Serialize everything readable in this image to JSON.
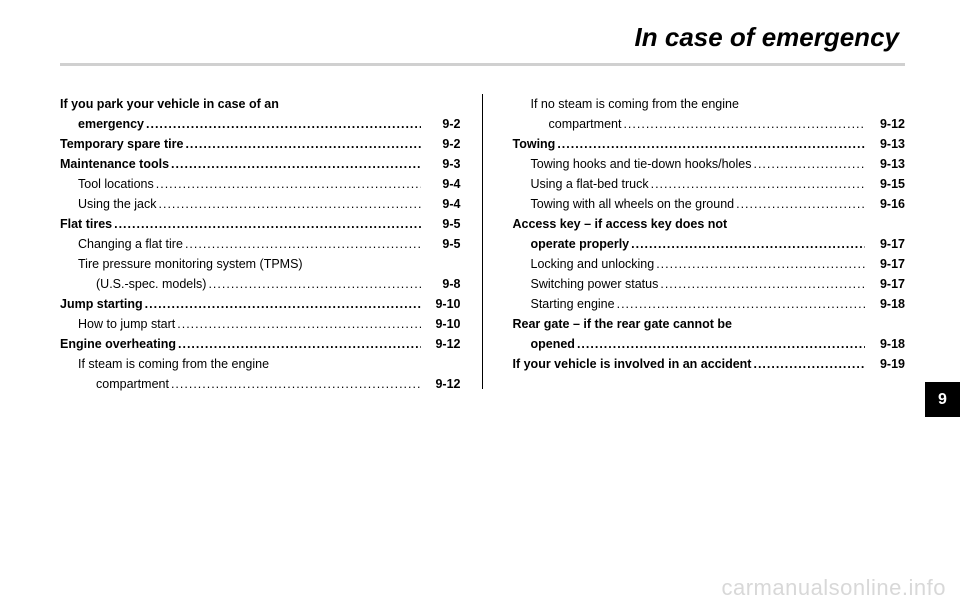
{
  "title": "In case of emergency",
  "side_tab": "9",
  "watermark": "carmanualsonline.info",
  "left": [
    {
      "label": "If you park your vehicle in case of an",
      "cls": "bold",
      "nodots": true
    },
    {
      "label": "emergency",
      "page": "9-2",
      "cls": "bold",
      "indent": "sub-continue"
    },
    {
      "label": "Temporary spare tire",
      "page": "9-2",
      "cls": "bold"
    },
    {
      "label": "Maintenance tools",
      "page": "9-3",
      "cls": "bold"
    },
    {
      "label": "Tool locations",
      "page": "9-4",
      "cls": "sub"
    },
    {
      "label": "Using the jack",
      "page": "9-4",
      "cls": "sub"
    },
    {
      "label": "Flat tires",
      "page": "9-5",
      "cls": "bold"
    },
    {
      "label": "Changing a flat tire",
      "page": "9-5",
      "cls": "sub"
    },
    {
      "label": "Tire pressure monitoring system (TPMS)",
      "cls": "sub",
      "nodots": true
    },
    {
      "label": "(U.S.-spec. models)",
      "page": "9-8",
      "cls": "subsub"
    },
    {
      "label": "Jump starting",
      "page": "9-10",
      "cls": "bold"
    },
    {
      "label": "How to jump start",
      "page": "9-10",
      "cls": "sub"
    },
    {
      "label": "Engine overheating",
      "page": "9-12",
      "cls": "bold"
    },
    {
      "label": "If steam is coming from the engine",
      "cls": "sub",
      "nodots": true
    },
    {
      "label": "compartment",
      "page": "9-12",
      "cls": "subsub"
    }
  ],
  "right": [
    {
      "label": "If no steam is coming from the engine",
      "cls": "sub",
      "nodots": true
    },
    {
      "label": "compartment",
      "page": "9-12",
      "cls": "subsub"
    },
    {
      "label": "Towing",
      "page": "9-13",
      "cls": "bold"
    },
    {
      "label": "Towing hooks and tie-down hooks/holes",
      "page": "9-13",
      "cls": "sub"
    },
    {
      "label": "Using a flat-bed truck",
      "page": "9-15",
      "cls": "sub"
    },
    {
      "label": "Towing with all wheels on the ground",
      "page": "9-16",
      "cls": "sub"
    },
    {
      "label": "Access key – if access key does not",
      "cls": "bold",
      "nodots": true
    },
    {
      "label": "operate properly",
      "page": "9-17",
      "cls": "bold",
      "indent": "sub-continue"
    },
    {
      "label": "Locking and unlocking",
      "page": "9-17",
      "cls": "sub"
    },
    {
      "label": "Switching power status",
      "page": "9-17",
      "cls": "sub"
    },
    {
      "label": "Starting engine",
      "page": "9-18",
      "cls": "sub"
    },
    {
      "label": "Rear gate – if the rear gate cannot be",
      "cls": "bold",
      "nodots": true
    },
    {
      "label": "opened",
      "page": "9-18",
      "cls": "bold",
      "indent": "sub-continue"
    },
    {
      "label": "If your vehicle is involved in an accident",
      "page": "9-19",
      "cls": "bold"
    }
  ]
}
